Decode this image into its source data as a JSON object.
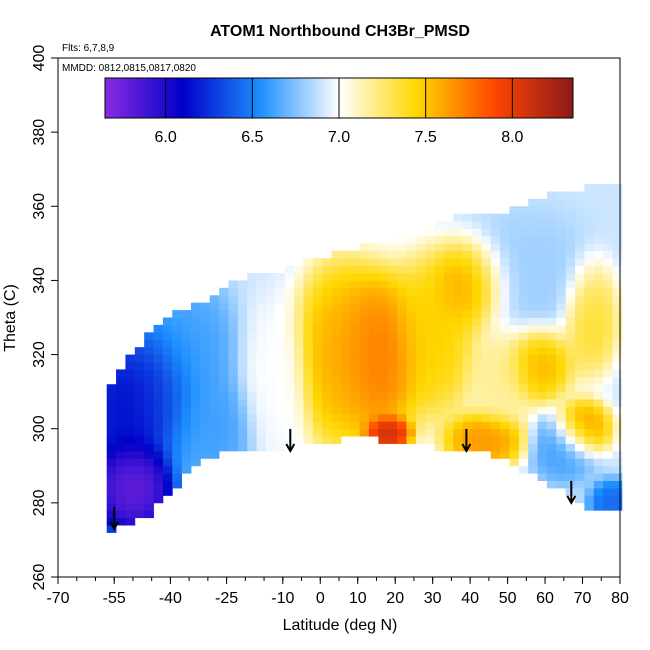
{
  "chart_data": {
    "type": "heatmap",
    "title": "ATOM1 Northbound CH3Br_PMSD",
    "annotations": [
      "Flts: 6,7,8,9",
      "MMDD: 0812,0815,0817,0820"
    ],
    "xlabel": "Latitude (deg N)",
    "ylabel": "Theta (C)",
    "xlim": [
      -70,
      80
    ],
    "ylim": [
      260,
      400
    ],
    "x_ticks": [
      -70,
      -55,
      -40,
      -25,
      -10,
      0,
      10,
      20,
      30,
      40,
      50,
      60,
      70,
      80
    ],
    "x_tick_labels": [
      "-70",
      "-55",
      "-40",
      "-25",
      "-10",
      "0",
      "10",
      "20",
      "30",
      "40",
      "50",
      "60",
      "70",
      "80"
    ],
    "y_ticks": [
      260,
      280,
      300,
      320,
      340,
      360,
      380,
      400
    ],
    "y_tick_labels": [
      "260",
      "280",
      "300",
      "320",
      "340",
      "360",
      "380",
      "400"
    ],
    "colorbar": {
      "range": [
        5.65,
        8.35
      ],
      "ticks": [
        6.0,
        6.5,
        7.0,
        7.5,
        8.0
      ],
      "tick_labels": [
        "6.0",
        "6.5",
        "7.0",
        "7.5",
        "8.0"
      ],
      "colors": [
        "#8a2be2",
        "#0000c8",
        "#1e90ff",
        "#ffffff",
        "#ffd700",
        "#ff4500",
        "#8b1a1a"
      ]
    },
    "arrows": [
      {
        "lat": -55,
        "theta": 273
      },
      {
        "lat": -8,
        "theta": 294
      },
      {
        "lat": 39,
        "theta": 294
      },
      {
        "lat": 67,
        "theta": 280
      }
    ],
    "coverage": {
      "lat": [
        -57,
        -52,
        -45,
        -40,
        -35,
        -30,
        -25,
        -20,
        -10,
        0,
        10,
        20,
        30,
        40,
        50,
        60,
        70,
        80
      ],
      "theta_min": [
        272,
        274,
        277,
        283,
        288,
        292,
        294,
        295,
        295,
        296,
        298,
        296,
        295,
        295,
        291,
        286,
        279,
        278
      ],
      "theta_max": [
        310,
        318,
        325,
        330,
        332,
        333,
        337,
        340,
        342,
        345,
        348,
        350,
        354,
        358,
        358,
        362,
        364,
        366
      ]
    },
    "blobs": [
      {
        "lat": -50,
        "theta": 285,
        "value": 5.7,
        "spread": [
          7,
          9
        ]
      },
      {
        "lat": -52,
        "theta": 305,
        "value": 6.1,
        "spread": [
          7,
          12
        ]
      },
      {
        "lat": -43,
        "theta": 310,
        "value": 6.2,
        "spread": [
          7,
          12
        ]
      },
      {
        "lat": -35,
        "theta": 320,
        "value": 6.6,
        "spread": [
          8,
          14
        ]
      },
      {
        "lat": -30,
        "theta": 300,
        "value": 6.6,
        "spread": [
          8,
          10
        ]
      },
      {
        "lat": -12,
        "theta": 312,
        "value": 7.0,
        "spread": [
          6,
          15
        ]
      },
      {
        "lat": 5,
        "theta": 320,
        "value": 7.6,
        "spread": [
          8,
          16
        ]
      },
      {
        "lat": 15,
        "theta": 320,
        "value": 7.8,
        "spread": [
          8,
          14
        ]
      },
      {
        "lat": 18,
        "theta": 299,
        "value": 8.2,
        "spread": [
          4,
          3
        ]
      },
      {
        "lat": 30,
        "theta": 325,
        "value": 7.5,
        "spread": [
          8,
          14
        ]
      },
      {
        "lat": 40,
        "theta": 338,
        "value": 7.7,
        "spread": [
          7,
          8
        ]
      },
      {
        "lat": 44,
        "theta": 297,
        "value": 7.7,
        "spread": [
          7,
          5
        ]
      },
      {
        "lat": 48,
        "theta": 315,
        "value": 7.2,
        "spread": [
          6,
          10
        ]
      },
      {
        "lat": 58,
        "theta": 318,
        "value": 7.6,
        "spread": [
          6,
          7
        ]
      },
      {
        "lat": 70,
        "theta": 300,
        "value": 7.7,
        "spread": [
          5,
          5
        ]
      },
      {
        "lat": 72,
        "theta": 330,
        "value": 7.4,
        "spread": [
          5,
          10
        ]
      },
      {
        "lat": 65,
        "theta": 295,
        "value": 6.6,
        "spread": [
          6,
          6
        ]
      },
      {
        "lat": 55,
        "theta": 340,
        "value": 6.8,
        "spread": [
          12,
          12
        ]
      },
      {
        "lat": 78,
        "theta": 280,
        "value": 6.4,
        "spread": [
          4,
          4
        ]
      }
    ],
    "background_value": 6.9,
    "grid": false,
    "legend": "top"
  }
}
